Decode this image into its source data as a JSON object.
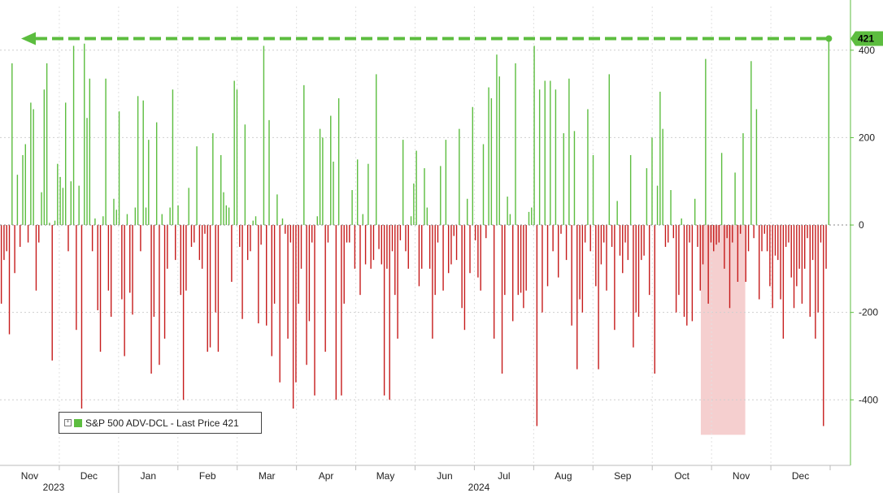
{
  "chart_data": {
    "type": "bar",
    "title": "",
    "xlabel": "",
    "ylabel": "",
    "ylim": [
      -550,
      500
    ],
    "yticks": [
      -400,
      -200,
      0,
      200,
      400
    ],
    "grid": true,
    "legend": {
      "placement": "bottom-left",
      "entries": [
        {
          "name": "S&P 500 ADV-DCL - Last Price 421",
          "color": "#5cbd3f"
        }
      ]
    },
    "colors": {
      "positive": "#5cbd3f",
      "negative": "#c61b1b",
      "highlight": "#f5cfcf"
    },
    "last_price": 421,
    "month_labels": [
      "Nov",
      "Dec",
      "Jan",
      "Feb",
      "Mar",
      "Apr",
      "May",
      "Jun",
      "Jul",
      "Aug",
      "Sep",
      "Oct",
      "Nov",
      "Dec"
    ],
    "year_labels": [
      "2023",
      "2024"
    ],
    "highlight_range": {
      "from_index": 262,
      "to_index": 277
    },
    "values": [
      -180,
      -80,
      -60,
      -250,
      370,
      -110,
      115,
      -50,
      160,
      185,
      -40,
      280,
      265,
      -150,
      -40,
      75,
      310,
      370,
      5,
      -310,
      10,
      140,
      110,
      85,
      280,
      -60,
      100,
      410,
      -240,
      90,
      -420,
      415,
      245,
      335,
      -60,
      15,
      -195,
      -290,
      20,
      335,
      -150,
      -210,
      60,
      35,
      260,
      -170,
      -300,
      25,
      -155,
      -205,
      40,
      295,
      -60,
      285,
      40,
      195,
      -340,
      -210,
      235,
      -320,
      25,
      -260,
      -100,
      40,
      310,
      -80,
      45,
      -160,
      -400,
      -150,
      85,
      -50,
      -40,
      180,
      -80,
      -100,
      -20,
      -290,
      -280,
      210,
      -200,
      -290,
      160,
      75,
      45,
      40,
      -130,
      330,
      310,
      -50,
      -215,
      230,
      -80,
      -60,
      10,
      20,
      -225,
      -45,
      410,
      -230,
      240,
      -300,
      -180,
      70,
      -360,
      15,
      -20,
      -260,
      -40,
      -420,
      -360,
      -180,
      -100,
      320,
      -320,
      -220,
      -40,
      -390,
      20,
      220,
      200,
      -290,
      -40,
      250,
      145,
      -400,
      290,
      -390,
      -180,
      -40,
      -40,
      80,
      -100,
      150,
      -160,
      25,
      -90,
      140,
      -100,
      -80,
      345,
      -55,
      -90,
      -390,
      -100,
      -400,
      -60,
      -160,
      -260,
      -35,
      195,
      -60,
      -100,
      20,
      95,
      170,
      -140,
      -100,
      130,
      40,
      -100,
      -260,
      -160,
      -40,
      135,
      -150,
      195,
      -110,
      -90,
      -25,
      -80,
      220,
      -190,
      -240,
      60,
      -110,
      270,
      -35,
      -120,
      -150,
      185,
      -30,
      315,
      290,
      -260,
      390,
      340,
      -340,
      -160,
      65,
      25,
      -220,
      370,
      -160,
      -155,
      -190,
      -150,
      30,
      40,
      410,
      -460,
      310,
      -200,
      330,
      -140,
      330,
      -60,
      310,
      -120,
      -20,
      210,
      -80,
      335,
      -230,
      215,
      -330,
      -170,
      -200,
      -40,
      265,
      -60,
      160,
      -140,
      -330,
      -90,
      -40,
      -150,
      345,
      -50,
      -240,
      55,
      -70,
      -110,
      -40,
      -80,
      160,
      -280,
      -200,
      -210,
      -80,
      -70,
      130,
      -160,
      200,
      -340,
      90,
      305,
      220,
      -50,
      -40,
      80,
      -30,
      -200,
      -160,
      15,
      -210,
      -230,
      -40,
      -220,
      60,
      -50,
      -150,
      -90,
      380,
      -180,
      -40,
      -60,
      -45,
      -40,
      165,
      -100,
      -30,
      -190,
      -40,
      120,
      -130,
      -20,
      210,
      -130,
      -60,
      375,
      -30,
      265,
      -170,
      -60,
      -20,
      -60,
      -140,
      -190,
      -70,
      -80,
      -170,
      -260,
      -50,
      -40,
      -120,
      -190,
      -140,
      -100,
      -180,
      -100,
      -30,
      -210,
      -80,
      -260,
      -200,
      -40,
      -460,
      -100,
      421
    ]
  }
}
